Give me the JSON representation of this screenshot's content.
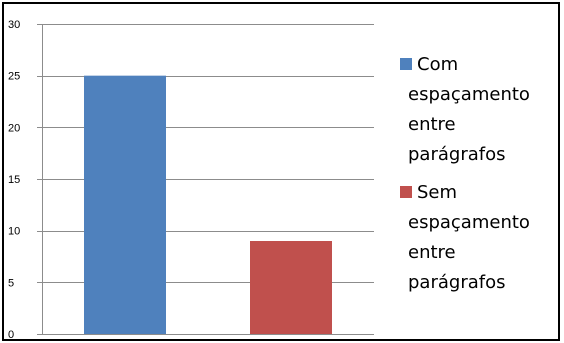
{
  "chart_data": {
    "type": "bar",
    "categories": [
      "",
      ""
    ],
    "series": [
      {
        "name": "Com espaçamento entre parágrafos",
        "legend_lines": [
          "Com",
          "espaçamento",
          "entre",
          "parágrafos"
        ],
        "color": "#4F81BD",
        "values": [
          25,
          null
        ]
      },
      {
        "name": "Sem espaçamento entre parágrafos",
        "legend_lines": [
          "Sem",
          "espaçamento",
          "entre",
          "parágrafos"
        ],
        "color": "#C0504D",
        "values": [
          null,
          9
        ]
      }
    ],
    "y_ticks": [
      "0",
      "5",
      "10",
      "15",
      "20",
      "25",
      "30"
    ],
    "ylim": [
      0,
      30
    ],
    "grid": true,
    "legend_position": "right",
    "title": "",
    "xlabel": "",
    "ylabel": ""
  }
}
